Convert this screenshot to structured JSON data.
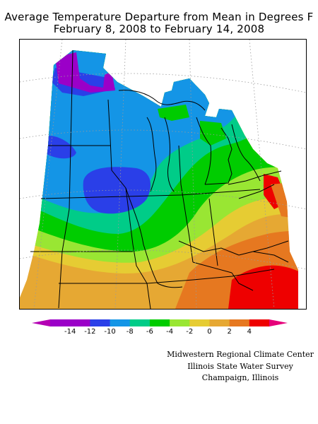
{
  "title": {
    "line1": "Average Temperature Departure from Mean in Degrees F",
    "line2": "February 8, 2008 to February 14, 2008"
  },
  "legend": {
    "ticks": [
      "-14",
      "-12",
      "-10",
      "-8",
      "-6",
      "-4",
      "-2",
      "0",
      "2",
      "4"
    ],
    "colors": [
      "#9b00c8",
      "#2a3fe8",
      "#1495e6",
      "#00cc88",
      "#00cc00",
      "#99e633",
      "#e6cc33",
      "#e6a833",
      "#e67820",
      "#ee0000"
    ],
    "end_colors": {
      "low": "#b400b4",
      "high": "#e6007a"
    }
  },
  "credits": {
    "line1": "Midwestern Regional Climate Center",
    "line2": "Illinois State Water Survey",
    "line3": "Champaign, Illinois"
  }
}
